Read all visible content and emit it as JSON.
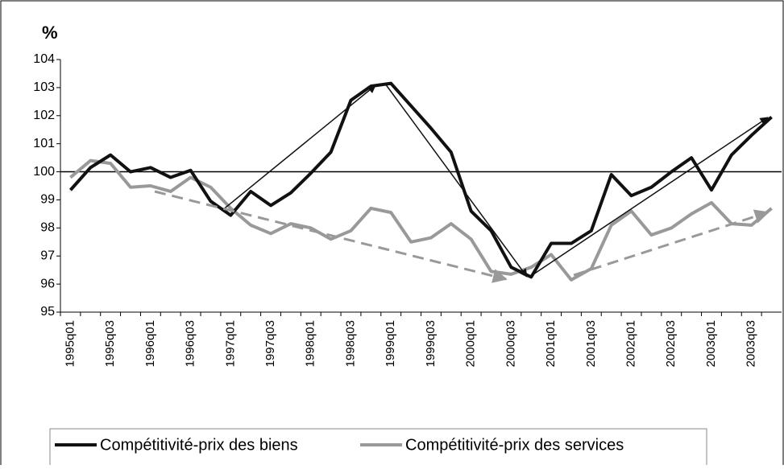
{
  "chart_data": {
    "type": "line",
    "ylabel": "%",
    "categories": [
      "1995q01",
      null,
      "1995q03",
      null,
      "1996q01",
      null,
      "1996q03",
      null,
      "1997q01",
      null,
      "1997q03",
      null,
      "1998q01",
      null,
      "1998q03",
      null,
      "1999q01",
      null,
      "1999q03",
      null,
      "2000q01",
      null,
      "2000q03",
      null,
      "2001q01",
      null,
      "2001q03",
      null,
      "2002q01",
      null,
      "2002q03",
      null,
      "2003q01",
      null,
      "2003q03",
      null
    ],
    "series": [
      {
        "name": "Compétitivité-prix des biens",
        "color": "#111111",
        "values": [
          99.35,
          100.15,
          100.6,
          100.0,
          100.15,
          99.8,
          100.05,
          98.95,
          98.45,
          99.3,
          98.8,
          99.25,
          99.95,
          100.7,
          102.55,
          103.05,
          103.15,
          102.35,
          101.55,
          100.7,
          98.6,
          97.9,
          96.6,
          96.25,
          97.45,
          97.45,
          97.9,
          99.9,
          99.15,
          99.45,
          100.0,
          100.5,
          99.35,
          100.6,
          101.3,
          101.95
        ]
      },
      {
        "name": "Compétitivité-prix des services",
        "color": "#999999",
        "values": [
          99.8,
          100.4,
          100.3,
          99.45,
          99.5,
          99.3,
          99.8,
          99.45,
          98.7,
          98.1,
          97.8,
          98.15,
          98.0,
          97.6,
          97.9,
          98.7,
          98.55,
          97.5,
          97.65,
          98.15,
          97.6,
          96.45,
          96.35,
          96.6,
          97.05,
          96.15,
          96.55,
          98.1,
          98.6,
          97.75,
          98.0,
          98.5,
          98.9,
          98.15,
          98.1,
          98.7
        ]
      }
    ],
    "reference_line": 100,
    "ylim": [
      95,
      104
    ],
    "yticks": [
      95,
      96,
      97,
      98,
      99,
      100,
      101,
      102,
      103,
      104
    ],
    "legend": "bottom"
  }
}
